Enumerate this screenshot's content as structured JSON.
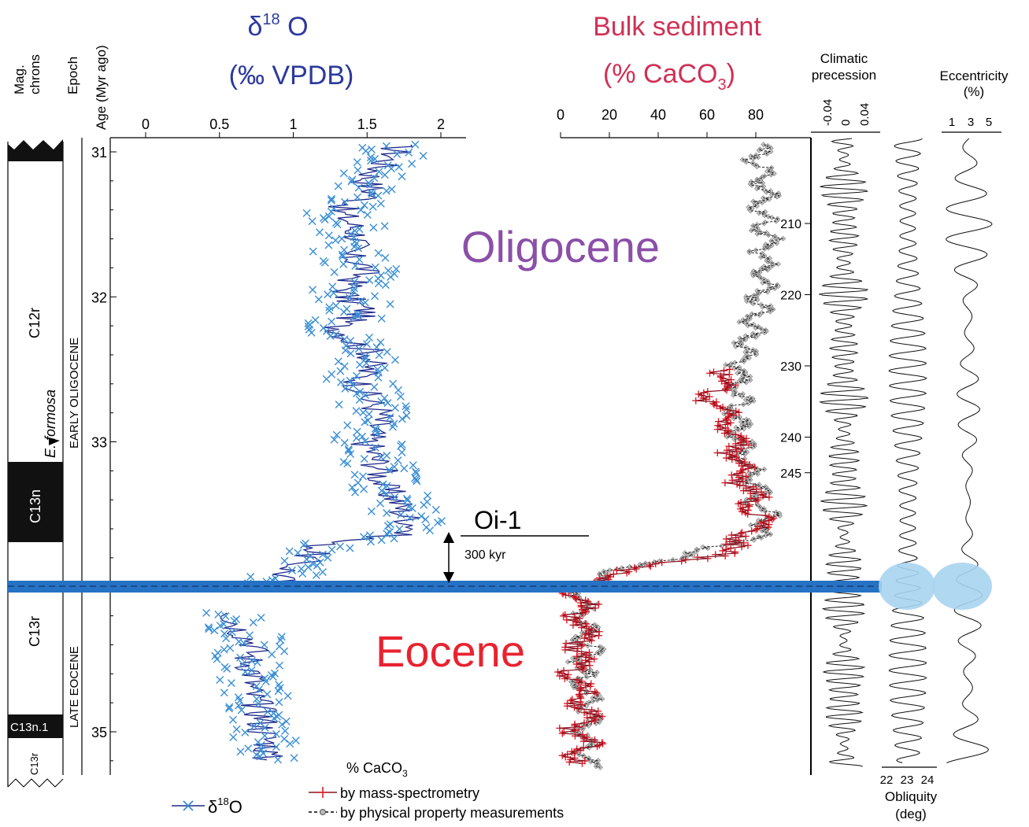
{
  "colors": {
    "d18o_points": "#3a8fd6",
    "d18o_line": "#1f2a8c",
    "d18o_title": "#2b3a9c",
    "bulk_title": "#d03055",
    "mass_spec": "#e0202a",
    "mass_spec_line": "#8a1020",
    "physprop": "#9a9a9a",
    "oligocene": "#8b4fa8",
    "eocene": "#e82330",
    "boundary_band": "#2672c4",
    "highlight": "#a9d4f0"
  },
  "left_strip": {
    "headers": [
      "Mag. chrons",
      "Epoch",
      "Age (Myr ago)"
    ],
    "chrons": [
      "C12r",
      "C13n",
      "C13r",
      "C13n.1",
      "C13r"
    ],
    "epochs": [
      "EARLY OLIGOCENE",
      "LATE EOCENE"
    ],
    "marker": "E. formosa"
  },
  "labels": {
    "oligocene": "Oligocene",
    "eocene": "Eocene",
    "oi1": "Oi-1",
    "kyr": "300 kyr"
  },
  "orbital": {
    "precession_title_1": "Climatic",
    "precession_title_2": "precession",
    "precession_ticks": [
      "-0.04",
      "0",
      "0.04"
    ],
    "eccentricity_title_1": "Eccentricity",
    "eccentricity_title_2": "(%)",
    "eccentricity_ticks": [
      "1",
      "3",
      "5"
    ],
    "obliquity_title_1": "Obliquity",
    "obliquity_title_2": "(deg)",
    "obliquity_ticks": [
      "22",
      "23",
      "24"
    ]
  },
  "legend": {
    "d18o_pre": "δ",
    "d18o_sup": "18",
    "d18o_post": "O",
    "caco3_title_pre": "% CaCO",
    "caco3_title_sub": "3",
    "mass_spec": "by mass-spectrometry",
    "physprop": "by physical property measurements"
  },
  "chart_data": [
    {
      "type": "scatter",
      "title_line1_pre": "δ",
      "title_line1_sup": "18",
      "title_line1_post": " O",
      "title_line2": "(‰ VPDB)",
      "x_ticks": [
        "0",
        "0.5",
        "1",
        "1.5",
        "2"
      ],
      "xlim": [
        0,
        2.15
      ],
      "ylabel": "Age (Myr ago)",
      "y_ticks": [
        "31",
        "32",
        "33",
        "34",
        "35"
      ],
      "ylim": [
        30.95,
        35.3
      ],
      "series": [
        {
          "name": "δ18O",
          "points": [
            [
              31.0,
              1.7
            ],
            [
              31.1,
              1.6
            ],
            [
              31.2,
              1.5
            ],
            [
              31.3,
              1.55
            ],
            [
              31.4,
              1.3
            ],
            [
              31.5,
              1.4
            ],
            [
              31.6,
              1.45
            ],
            [
              31.7,
              1.35
            ],
            [
              31.8,
              1.5
            ],
            [
              31.9,
              1.4
            ],
            [
              32.0,
              1.35
            ],
            [
              32.1,
              1.5
            ],
            [
              32.2,
              1.3
            ],
            [
              32.3,
              1.4
            ],
            [
              32.4,
              1.55
            ],
            [
              32.5,
              1.5
            ],
            [
              32.6,
              1.45
            ],
            [
              32.7,
              1.5
            ],
            [
              32.8,
              1.6
            ],
            [
              32.9,
              1.55
            ],
            [
              33.0,
              1.5
            ],
            [
              33.1,
              1.55
            ],
            [
              33.2,
              1.6
            ],
            [
              33.3,
              1.6
            ],
            [
              33.4,
              1.7
            ],
            [
              33.5,
              1.75
            ],
            [
              33.6,
              1.85
            ],
            [
              33.65,
              1.65
            ],
            [
              33.7,
              1.2
            ],
            [
              33.8,
              1.1
            ],
            [
              33.9,
              0.95
            ],
            [
              33.97,
              0.9
            ],
            [
              34.2,
              0.6
            ],
            [
              34.3,
              0.65
            ],
            [
              34.4,
              0.75
            ],
            [
              34.5,
              0.7
            ],
            [
              34.6,
              0.75
            ],
            [
              34.7,
              0.7
            ],
            [
              34.8,
              0.75
            ],
            [
              34.9,
              0.8
            ],
            [
              35.0,
              0.8
            ],
            [
              35.1,
              0.85
            ],
            [
              35.2,
              0.8
            ]
          ]
        }
      ]
    },
    {
      "type": "scatter",
      "title_line1": "Bulk sediment",
      "title_line2_pre": "(% CaCO",
      "title_line2_sub": "3",
      "title_line2_post": ")",
      "x_ticks": [
        "0",
        "20",
        "40",
        "60",
        "80"
      ],
      "xlim": [
        0,
        92
      ],
      "y_ticks": [
        "210",
        "220",
        "230",
        "240",
        "245"
      ],
      "series": [
        {
          "name": "by physical property measurements",
          "points": [
            [
              31.0,
              80
            ],
            [
              31.2,
              84
            ],
            [
              31.4,
              82
            ],
            [
              31.6,
              85
            ],
            [
              31.8,
              83
            ],
            [
              32.0,
              82
            ],
            [
              32.2,
              78
            ],
            [
              32.4,
              75
            ],
            [
              32.6,
              73
            ],
            [
              32.8,
              72
            ],
            [
              33.0,
              74
            ],
            [
              33.2,
              78
            ],
            [
              33.4,
              82
            ],
            [
              33.6,
              85
            ],
            [
              33.7,
              72
            ],
            [
              33.8,
              45
            ],
            [
              33.9,
              20
            ],
            [
              34.0,
              8
            ],
            [
              34.2,
              10
            ],
            [
              34.4,
              12
            ],
            [
              34.6,
              8
            ],
            [
              34.8,
              12
            ],
            [
              35.0,
              10
            ],
            [
              35.2,
              12
            ]
          ]
        },
        {
          "name": "by mass-spectrometry",
          "points": [
            [
              32.5,
              70
            ],
            [
              32.6,
              66
            ],
            [
              32.7,
              62
            ],
            [
              32.8,
              68
            ],
            [
              32.9,
              70
            ],
            [
              33.0,
              72
            ],
            [
              33.2,
              74
            ],
            [
              33.4,
              78
            ],
            [
              33.5,
              80
            ],
            [
              33.6,
              82
            ],
            [
              33.7,
              72
            ],
            [
              33.8,
              60
            ],
            [
              33.9,
              22
            ],
            [
              34.0,
              5
            ],
            [
              34.2,
              8
            ],
            [
              34.4,
              10
            ],
            [
              34.6,
              6
            ],
            [
              34.8,
              9
            ],
            [
              35.0,
              8
            ],
            [
              35.2,
              10
            ]
          ]
        }
      ]
    }
  ]
}
